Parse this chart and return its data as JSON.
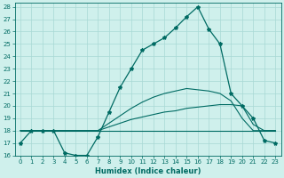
{
  "xlabel": "Humidex (Indice chaleur)",
  "bg_color": "#cff0ec",
  "grid_color": "#a8d8d4",
  "line_color": "#006b63",
  "x_values": [
    0,
    1,
    2,
    3,
    4,
    5,
    6,
    7,
    8,
    9,
    10,
    11,
    12,
    13,
    14,
    15,
    16,
    17,
    18,
    19,
    20,
    21,
    22,
    23
  ],
  "main_line": [
    17,
    18,
    18,
    18,
    16.2,
    16,
    16,
    17.5,
    19.5,
    21.5,
    23,
    24.5,
    25,
    25.5,
    26.3,
    27.2,
    28,
    26.2,
    25,
    21,
    20,
    19,
    17.2,
    17
  ],
  "flat_line": [
    18,
    18,
    18,
    18,
    18,
    18,
    18,
    18,
    18,
    18,
    18,
    18,
    18,
    18,
    18,
    18,
    18,
    18,
    18,
    18,
    18,
    18,
    18,
    18
  ],
  "line_mid": [
    18,
    18,
    18,
    18,
    18,
    18,
    18,
    18,
    18.3,
    18.6,
    18.9,
    19.1,
    19.3,
    19.5,
    19.6,
    19.8,
    19.9,
    20.0,
    20.1,
    20.1,
    20.0,
    18.5,
    18,
    18
  ],
  "line_high": [
    18,
    18,
    18,
    18,
    18,
    18,
    18,
    18,
    18.6,
    19.2,
    19.8,
    20.3,
    20.7,
    21.0,
    21.2,
    21.4,
    21.3,
    21.2,
    21.0,
    20.4,
    19.0,
    18,
    18,
    18
  ],
  "ylim": [
    16,
    28
  ],
  "yticks": [
    16,
    17,
    18,
    19,
    20,
    21,
    22,
    23,
    24,
    25,
    26,
    27,
    28
  ],
  "xticks": [
    0,
    1,
    2,
    3,
    4,
    5,
    6,
    7,
    8,
    9,
    10,
    11,
    12,
    13,
    14,
    15,
    16,
    17,
    18,
    19,
    20,
    21,
    22,
    23
  ],
  "xlabel_fontsize": 6,
  "tick_fontsize": 5
}
